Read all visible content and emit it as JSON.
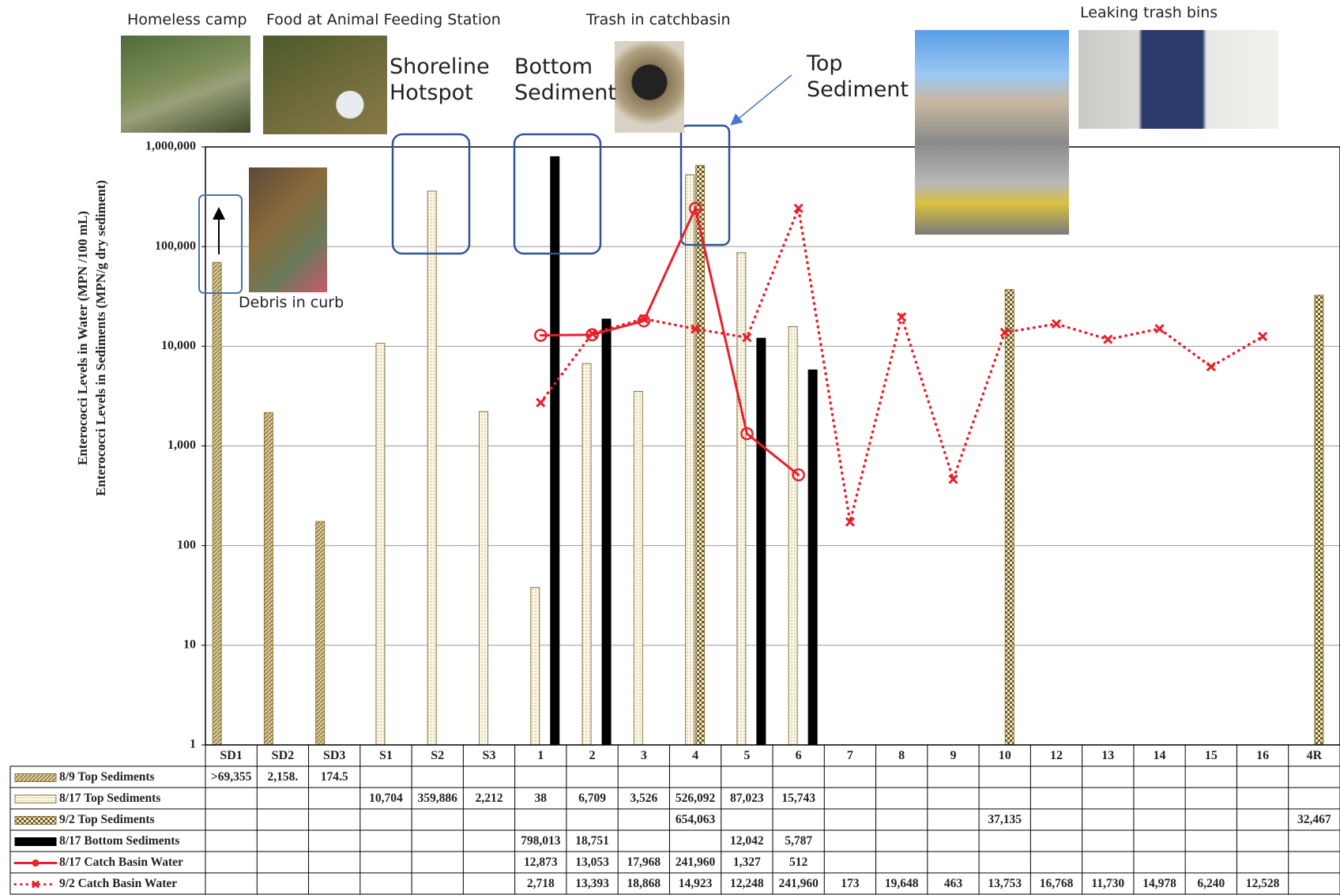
{
  "chart_data": {
    "type": "bar",
    "yscale": "log",
    "grid": true,
    "ylabel": [
      "Enterococci Levels in Water  (MPN /100 mL)",
      "Enterococci Levels in Sediments  (MPN/g dry sediment)"
    ],
    "ylim": [
      1,
      1000000
    ],
    "yticks": [
      1,
      10,
      100,
      {
        "value": 1000,
        "label": "1,000"
      },
      {
        "value": 10000,
        "label": "10,000"
      },
      {
        "value": 100000,
        "label": "100,000"
      },
      {
        "value": 1000000,
        "label": "1,000,000"
      }
    ],
    "annotations": [
      "Homeless camp",
      "Food at Animal Feeding Station",
      "Trash in catchbasin",
      "Leaking trash bins",
      "Debris in curb",
      "Shoreline Hotspot",
      "Bottom Sediment",
      "Top Sediment"
    ],
    "categories": [
      "SD1",
      "SD2",
      "SD3",
      "S1",
      "S2",
      "S3",
      "1",
      "2",
      "3",
      "4",
      "5",
      "6",
      "7",
      "8",
      "9",
      "10",
      "12",
      "13",
      "14",
      "15",
      "16",
      "4R"
    ],
    "series": [
      {
        "name": "8/9 Top Sediments",
        "type": "bar",
        "pattern": "hatch",
        "color": "#c8b27a",
        "values": [
          69355,
          2158,
          174.5,
          null,
          null,
          null,
          null,
          null,
          null,
          null,
          null,
          null,
          null,
          null,
          null,
          null,
          null,
          null,
          null,
          null,
          null,
          null
        ],
        "value_labels": [
          ">69,355",
          "2,158.",
          "174.5",
          null,
          null,
          null,
          null,
          null,
          null,
          null,
          null,
          null,
          null,
          null,
          null,
          null,
          null,
          null,
          null,
          null,
          null,
          null
        ]
      },
      {
        "name": "8/17 Top Sediments",
        "type": "bar",
        "pattern": "dots",
        "color": "#f6f0d8",
        "values": [
          null,
          null,
          null,
          10704,
          359886,
          2212,
          38,
          6709,
          3526,
          526092,
          87023,
          15743,
          null,
          null,
          null,
          null,
          null,
          null,
          null,
          null,
          null,
          null
        ],
        "value_labels": [
          null,
          null,
          null,
          "10,704",
          "359,886",
          "2,212",
          "38",
          "6,709",
          "3,526",
          "526,092",
          "87,023",
          "15,743",
          null,
          null,
          null,
          null,
          null,
          null,
          null,
          null,
          null,
          null
        ]
      },
      {
        "name": "9/2 Top Sediments",
        "type": "bar",
        "pattern": "checker",
        "color": "#6b5a1e",
        "values": [
          null,
          null,
          null,
          null,
          null,
          null,
          null,
          null,
          null,
          654063,
          null,
          null,
          null,
          null,
          null,
          37135,
          null,
          null,
          null,
          null,
          null,
          32467
        ],
        "value_labels": [
          null,
          null,
          null,
          null,
          null,
          null,
          null,
          null,
          null,
          "654,063",
          null,
          null,
          null,
          null,
          null,
          "37,135",
          null,
          null,
          null,
          null,
          null,
          "32,467"
        ]
      },
      {
        "name": "8/17 Bottom Sediments",
        "type": "bar",
        "pattern": "solid",
        "color": "#000000",
        "values": [
          null,
          null,
          null,
          null,
          null,
          null,
          798013,
          18751,
          null,
          null,
          12042,
          5787,
          null,
          null,
          null,
          null,
          null,
          null,
          null,
          null,
          null,
          null
        ],
        "value_labels": [
          null,
          null,
          null,
          null,
          null,
          null,
          "798,013",
          "18,751",
          null,
          null,
          "12,042",
          "5,787",
          null,
          null,
          null,
          null,
          null,
          null,
          null,
          null,
          null,
          null
        ]
      },
      {
        "name": "8/17 Catch Basin Water",
        "type": "line",
        "dash": "solid",
        "marker": "circle",
        "color": "#e8202a",
        "values": [
          null,
          null,
          null,
          null,
          null,
          null,
          12873,
          13053,
          17968,
          241960,
          1327,
          512,
          null,
          null,
          null,
          null,
          null,
          null,
          null,
          null,
          null,
          null
        ],
        "value_labels": [
          null,
          null,
          null,
          null,
          null,
          null,
          "12,873",
          "13,053",
          "17,968",
          "241,960",
          "1,327",
          "512",
          null,
          null,
          null,
          null,
          null,
          null,
          null,
          null,
          null,
          null
        ]
      },
      {
        "name": "9/2 Catch Basin Water",
        "type": "line",
        "dash": "dotted",
        "marker": "x",
        "color": "#e8202a",
        "values": [
          null,
          null,
          null,
          null,
          null,
          null,
          2718,
          13393,
          18868,
          14923,
          12248,
          241960,
          173,
          19648,
          463,
          13753,
          16768,
          11730,
          14978,
          6240,
          12528,
          null
        ],
        "value_labels": [
          null,
          null,
          null,
          null,
          null,
          null,
          "2,718",
          "13,393",
          "18,868",
          "14,923",
          "12,248",
          "241,960",
          "173",
          "19,648",
          "463",
          "13,753",
          "16,768",
          "11,730",
          "14,978",
          "6,240",
          "12,528",
          null
        ]
      }
    ]
  }
}
